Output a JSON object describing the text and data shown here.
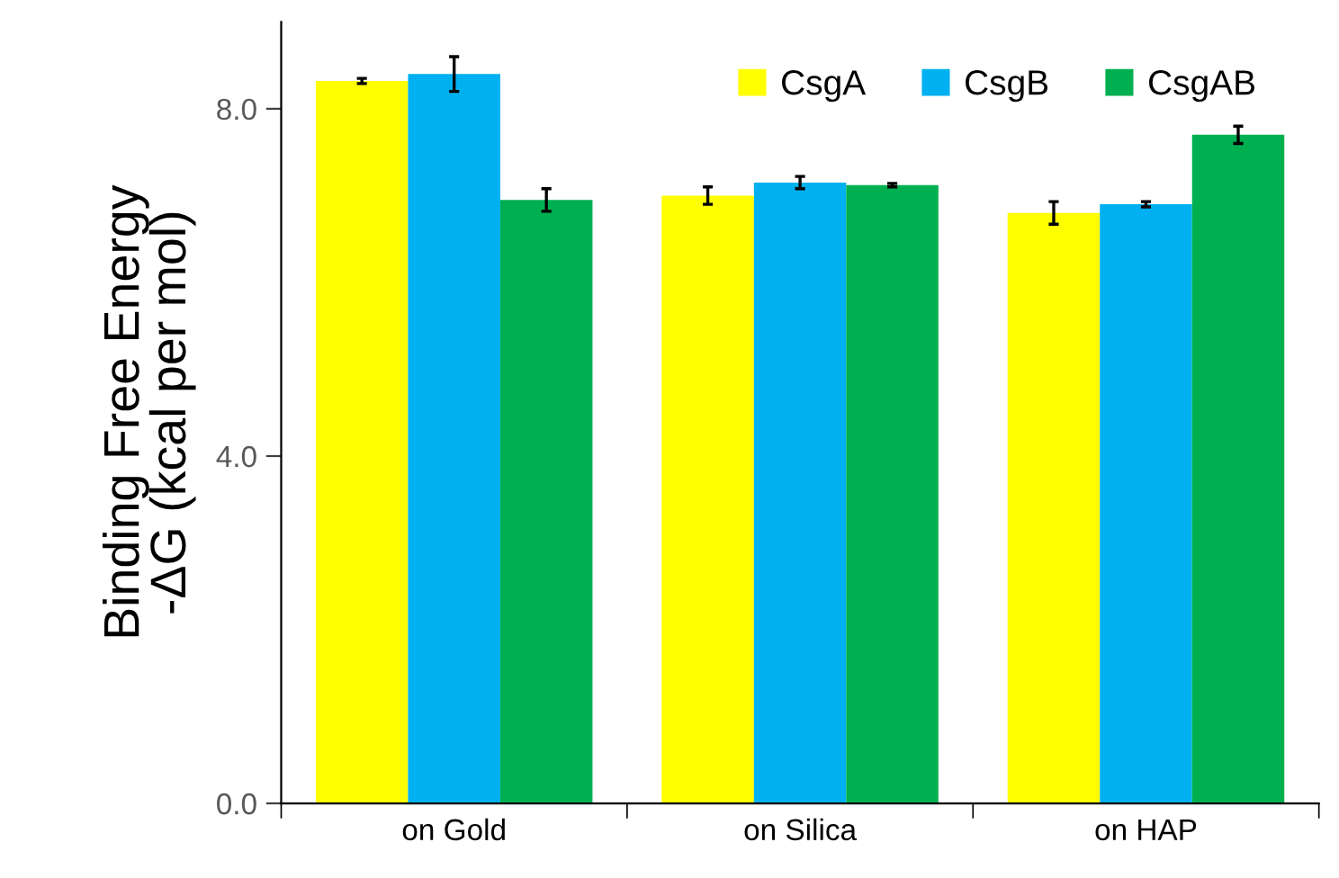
{
  "chart_data": {
    "type": "bar",
    "ylabel": "Binding Free Energy\n-ΔG (kcal per mol)",
    "categories": [
      "on Gold",
      "on Silica",
      "on HAP"
    ],
    "series": [
      {
        "name": "CsgA",
        "color": "#ffff00",
        "values": [
          8.32,
          7.0,
          6.8
        ],
        "errors": [
          0.03,
          0.1,
          0.13
        ]
      },
      {
        "name": "CsgB",
        "color": "#00b0f0",
        "values": [
          8.4,
          7.15,
          6.9
        ],
        "errors": [
          0.2,
          0.07,
          0.03
        ]
      },
      {
        "name": "CsgAB",
        "color": "#00b050",
        "values": [
          6.95,
          7.12,
          7.7
        ],
        "errors": [
          0.13,
          0.02,
          0.1
        ]
      }
    ],
    "ylim": [
      0,
      9
    ],
    "yticks": [
      {
        "value": 0,
        "label": "0.0"
      },
      {
        "value": 4,
        "label": "4.0"
      },
      {
        "value": 8,
        "label": "8.0"
      }
    ],
    "grid": false,
    "legend": "top right"
  }
}
